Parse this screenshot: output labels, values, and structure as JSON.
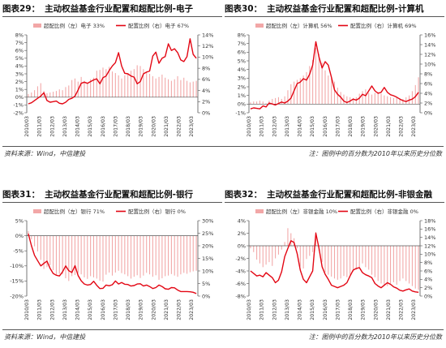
{
  "colors": {
    "bar": "#f2a7a7",
    "line": "#e30613",
    "axis": "#555555",
    "text": "#333333"
  },
  "footer_top": {
    "source": "资料来源：Wind，中信建投",
    "note": "注：图例中的百分数为2010年以来历史分位数"
  },
  "footer_bottom": {
    "source": "资料来源：Wind，中信建投",
    "note": "注：图例中的百分数为2010年以来历史分位数"
  },
  "chart_data": [
    {
      "type": "bar+line",
      "number": "图表29：",
      "title": "主动权益基金行业配置和超配比例-电子",
      "legend": [
        "超配比例（左）电子 33%",
        "配置比例（右）电子 67%"
      ],
      "left_axis": {
        "min": -2,
        "max": 8,
        "step": 1,
        "ticks": [
          "-2%",
          "-1%",
          "0%",
          "1%",
          "2%",
          "3%",
          "4%",
          "5%",
          "6%",
          "7%",
          "8%"
        ]
      },
      "right_axis": {
        "min": 0,
        "max": 14,
        "step": 2,
        "ticks": [
          "0%",
          "2%",
          "4%",
          "6%",
          "8%",
          "10%",
          "12%",
          "14%"
        ]
      },
      "x_ticks": [
        "2010/03",
        "2011/03",
        "2012/03",
        "2013/03",
        "2014/03",
        "2015/03",
        "2016/03",
        "2017/03",
        "2018/03",
        "2019/03",
        "2020/03",
        "2021/03",
        "2022/03",
        "2023/03"
      ],
      "overweight_left": [
        0.4,
        0.6,
        0.9,
        1.4,
        1.8,
        0.8,
        0.5,
        0.6,
        0.7,
        0.8,
        1.0,
        0.9,
        1.3,
        1.5,
        2.2,
        2.4,
        2.0,
        2.6,
        2.1,
        1.8,
        2.3,
        2.5,
        3.4,
        3.5,
        3.8,
        3.6,
        3.9,
        3.3,
        3.1,
        2.8,
        2.4,
        2.8,
        3.0,
        3.4,
        3.6,
        4.1,
        4.0,
        3.6,
        3.3,
        3.0,
        2.7,
        2.4,
        2.6,
        2.9,
        2.5,
        2.3,
        2.1,
        2.3,
        2.7,
        2.2,
        2.5,
        2.1,
        1.9,
        2.0,
        2.1
      ],
      "weight_right": [
        1.6,
        1.8,
        2.2,
        2.6,
        3.0,
        3.6,
        2.2,
        1.9,
        2.0,
        2.1,
        1.7,
        1.6,
        1.9,
        2.4,
        2.6,
        3.0,
        4.1,
        5.3,
        5.5,
        5.3,
        5.6,
        5.9,
        6.1,
        5.2,
        6.3,
        6.6,
        7.6,
        8.4,
        9.0,
        10.8,
        8.4,
        7.1,
        7.0,
        6.6,
        6.4,
        5.2,
        5.6,
        7.0,
        7.3,
        7.5,
        10.2,
        10.9,
        8.9,
        9.8,
        10.1,
        12.4,
        11.2,
        11.5,
        10.8,
        9.5,
        9.2,
        10.1,
        13.3,
        10.5,
        9.8
      ]
    },
    {
      "type": "bar+line",
      "number": "图表30：",
      "title": "主动权益基金行业配置和超配比例-计算机",
      "legend": [
        "超配比例（左）计算机 56%",
        "配置比例（右）计算机 69%"
      ],
      "left_axis": {
        "min": -1,
        "max": 8,
        "step": 1,
        "ticks": [
          "-1%",
          "0%",
          "1%",
          "2%",
          "3%",
          "4%",
          "5%",
          "6%",
          "7%",
          "8%"
        ]
      },
      "right_axis": {
        "min": 0,
        "max": 16,
        "step": 2,
        "ticks": [
          "0%",
          "2%",
          "4%",
          "6%",
          "8%",
          "10%",
          "12%",
          "14%",
          "16%"
        ]
      },
      "x_ticks": [
        "2010/03",
        "2011/03",
        "2012/03",
        "2013/03",
        "2014/03",
        "2015/03",
        "2016/03",
        "2017/03",
        "2018/03",
        "2019/03",
        "2020/03",
        "2021/03",
        "2022/03",
        "2023/03"
      ],
      "overweight_left": [
        0.2,
        0.3,
        0.3,
        0.4,
        0.3,
        0.1,
        0.4,
        0.6,
        0.7,
        0.8,
        0.6,
        0.9,
        1.6,
        2.3,
        2.6,
        2.8,
        3.0,
        3.3,
        3.7,
        4.4,
        5.1,
        6.5,
        5.8,
        4.8,
        3.9,
        3.3,
        3.0,
        2.6,
        1.9,
        1.4,
        1.1,
        0.9,
        0.8,
        0.7,
        0.8,
        1.2,
        1.5,
        1.7,
        1.3,
        1.1,
        1.3,
        1.4,
        1.2,
        1.0,
        0.9,
        0.8,
        0.7,
        0.8,
        0.7,
        0.6,
        0.8,
        1.0,
        1.5,
        2.2,
        3.1
      ],
      "weight_right": [
        0.8,
        1.0,
        0.9,
        0.8,
        1.4,
        1.2,
        2.0,
        1.8,
        1.6,
        1.9,
        2.2,
        2.0,
        2.4,
        3.0,
        4.5,
        6.0,
        6.3,
        7.0,
        6.7,
        7.9,
        9.8,
        14.6,
        11.5,
        9.2,
        10.5,
        9.8,
        7.3,
        4.7,
        3.8,
        3.2,
        2.4,
        2.1,
        2.4,
        2.8,
        2.6,
        3.0,
        3.8,
        3.5,
        4.5,
        5.5,
        4.5,
        4.0,
        4.2,
        5.2,
        4.2,
        3.7,
        3.5,
        3.2,
        2.8,
        2.5,
        2.3,
        2.6,
        2.8,
        3.3,
        4.2
      ]
    },
    {
      "type": "bar+line",
      "number": "图表31：",
      "title": "主动权益基金行业配置和超配比例-银行",
      "legend": [
        "超配比例（左）银行 71%",
        "配置比例（右）银行 0%"
      ],
      "left_axis": {
        "min": -20,
        "max": 5,
        "step": 5,
        "ticks": [
          "-20%",
          "-15%",
          "-10%",
          "-5%",
          "0%",
          "5%"
        ]
      },
      "right_axis": {
        "min": 0,
        "max": 30,
        "step": 5,
        "ticks": [
          "0%",
          "5%",
          "10%",
          "15%",
          "20%",
          "25%",
          "30%"
        ]
      },
      "x_ticks": [
        "2010/03",
        "2011/03",
        "2012/03",
        "2013/03",
        "2014/03",
        "2015/03",
        "2016/03",
        "2017/03",
        "2018/03",
        "2019/03",
        "2020/03",
        "2021/03",
        "2022/03",
        "2023/03"
      ],
      "overweight_left": [
        1.5,
        -1.2,
        -3.5,
        -5.2,
        -8.0,
        -11.0,
        -10.4,
        -9.8,
        -11.4,
        -13.2,
        -12.6,
        -12.8,
        -14.1,
        -15.0,
        -13.4,
        -13.0,
        -12.4,
        -12.8,
        -13.8,
        -14.3,
        -13.4,
        -13.8,
        -14.2,
        -14.9,
        -15.2,
        -12.9,
        -12.2,
        -13.2,
        -12.2,
        -11.6,
        -12.4,
        -12.8,
        -13.4,
        -14.2,
        -13.6,
        -13.1,
        -14.0,
        -13.2,
        -12.3,
        -12.8,
        -13.6,
        -13.1,
        -14.6,
        -14.1,
        -13.4,
        -13.2,
        -12.7,
        -13.2,
        -13.6,
        -12.8,
        -12.3,
        -12.6,
        -12.1,
        -11.8,
        -11.6
      ],
      "weight_right": [
        24.8,
        20.0,
        16.2,
        14.1,
        12.0,
        13.0,
        13.9,
        11.0,
        9.0,
        8.3,
        8.0,
        9.6,
        12.0,
        10.1,
        9.4,
        12.1,
        8.2,
        6.1,
        4.8,
        4.4,
        4.6,
        5.9,
        4.3,
        3.0,
        3.1,
        4.4,
        4.1,
        4.5,
        6.0,
        4.8,
        5.4,
        4.7,
        4.6,
        4.0,
        4.2,
        4.8,
        4.9,
        4.0,
        4.4,
        3.8,
        3.0,
        3.4,
        4.4,
        3.8,
        2.9,
        2.7,
        3.4,
        3.3,
        2.4,
        1.8,
        1.8,
        1.8,
        1.7,
        1.5,
        1.0
      ]
    },
    {
      "type": "bar+line",
      "number": "图表32：",
      "title": "主动权益基金行业配置和超配比例-非银金融",
      "legend": [
        "超配比例（左）非银金融 10%",
        "配置比例（右）非银金融 0%"
      ],
      "left_axis": {
        "min": -8,
        "max": 4,
        "step": 2,
        "ticks": [
          "-8%",
          "-6%",
          "-4%",
          "-2%",
          "0%",
          "2%",
          "4%"
        ]
      },
      "right_axis": {
        "min": 0,
        "max": 18,
        "step": 2,
        "ticks": [
          "0%",
          "2%",
          "4%",
          "6%",
          "8%",
          "10%",
          "12%",
          "14%",
          "16%",
          "18%"
        ]
      },
      "x_ticks": [
        "2010/03",
        "2011/03",
        "2012/03",
        "2013/03",
        "2014/03",
        "2015/03",
        "2016/03",
        "2017/03",
        "2018/03",
        "2019/03",
        "2020/03",
        "2021/03",
        "2022/03",
        "2023/03"
      ],
      "overweight_left": [
        -0.4,
        -1.0,
        -2.2,
        -2.8,
        -3.4,
        -3.0,
        -2.6,
        -3.2,
        -2.0,
        -1.4,
        -0.6,
        0.6,
        2.8,
        2.0,
        1.2,
        -0.4,
        -3.3,
        -3.6,
        -2.1,
        -1.6,
        -1.0,
        2.2,
        -0.8,
        -2.6,
        -4.2,
        -4.6,
        -4.9,
        -5.2,
        -5.4,
        -5.2,
        -4.8,
        -5.0,
        -4.6,
        -4.1,
        -3.8,
        -3.4,
        -2.8,
        -3.4,
        -3.8,
        -4.6,
        -5.0,
        -5.6,
        -6.0,
        -6.2,
        -6.4,
        -6.0,
        -5.8,
        -6.2,
        -5.6,
        -5.2,
        -5.6,
        -6.0,
        -6.4,
        -6.8,
        -7.0
      ],
      "weight_right": [
        6.0,
        5.4,
        4.8,
        5.0,
        4.6,
        5.6,
        5.0,
        4.4,
        3.2,
        3.8,
        5.8,
        9.4,
        11.4,
        13.2,
        12.8,
        10.1,
        6.2,
        4.0,
        3.2,
        4.6,
        6.0,
        15.0,
        11.5,
        7.0,
        5.2,
        4.0,
        2.6,
        2.3,
        2.0,
        2.3,
        2.6,
        3.2,
        4.8,
        6.2,
        6.6,
        6.8,
        5.6,
        5.1,
        4.8,
        4.4,
        3.0,
        2.4,
        2.0,
        2.6,
        3.2,
        2.8,
        2.2,
        1.9,
        1.4,
        1.2,
        1.5,
        1.7,
        1.2,
        1.0,
        0.9
      ]
    }
  ]
}
